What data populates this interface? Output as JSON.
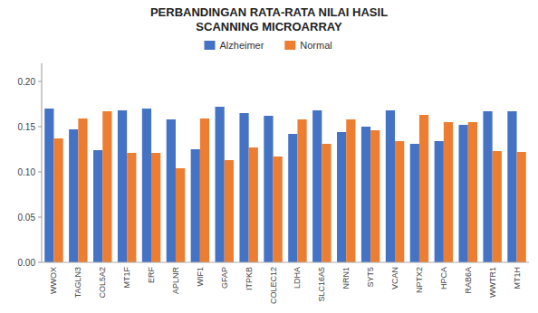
{
  "chart_data": {
    "type": "bar",
    "title": "PERBANDINGAN RATA-RATA NILAI HASIL\nSCANNING MICROARRAY",
    "categories": [
      "WWOX",
      "TAGLN3",
      "COL5A2",
      "MT1F",
      "ERF",
      "APLNR",
      "WIF1",
      "GFAP",
      "ITPKB",
      "COLEC12",
      "LDHA",
      "SLC16A5",
      "NRN1",
      "SYT5",
      "VCAN",
      "NPTX2",
      "HPCA",
      "RAB6A",
      "WWTR1",
      "MT1H"
    ],
    "series": [
      {
        "name": "Alzheimer",
        "color": "#4472C4",
        "values": [
          0.17,
          0.147,
          0.124,
          0.168,
          0.17,
          0.158,
          0.125,
          0.172,
          0.165,
          0.162,
          0.142,
          0.168,
          0.144,
          0.15,
          0.168,
          0.131,
          0.134,
          0.152,
          0.167,
          0.167
        ]
      },
      {
        "name": "Normal",
        "color": "#ED7D31",
        "values": [
          0.137,
          0.159,
          0.167,
          0.121,
          0.121,
          0.104,
          0.159,
          0.113,
          0.127,
          0.117,
          0.158,
          0.131,
          0.158,
          0.146,
          0.134,
          0.163,
          0.155,
          0.155,
          0.123,
          0.122
        ]
      }
    ],
    "ylim": [
      0,
      0.22
    ],
    "yticks": [
      {
        "value": 0,
        "label": "0.00"
      },
      0.05,
      {
        "value": 0.1,
        "label": "0.10"
      },
      0.15,
      {
        "value": 0.2,
        "label": "0.20"
      }
    ],
    "grid": false,
    "legend": "top"
  }
}
